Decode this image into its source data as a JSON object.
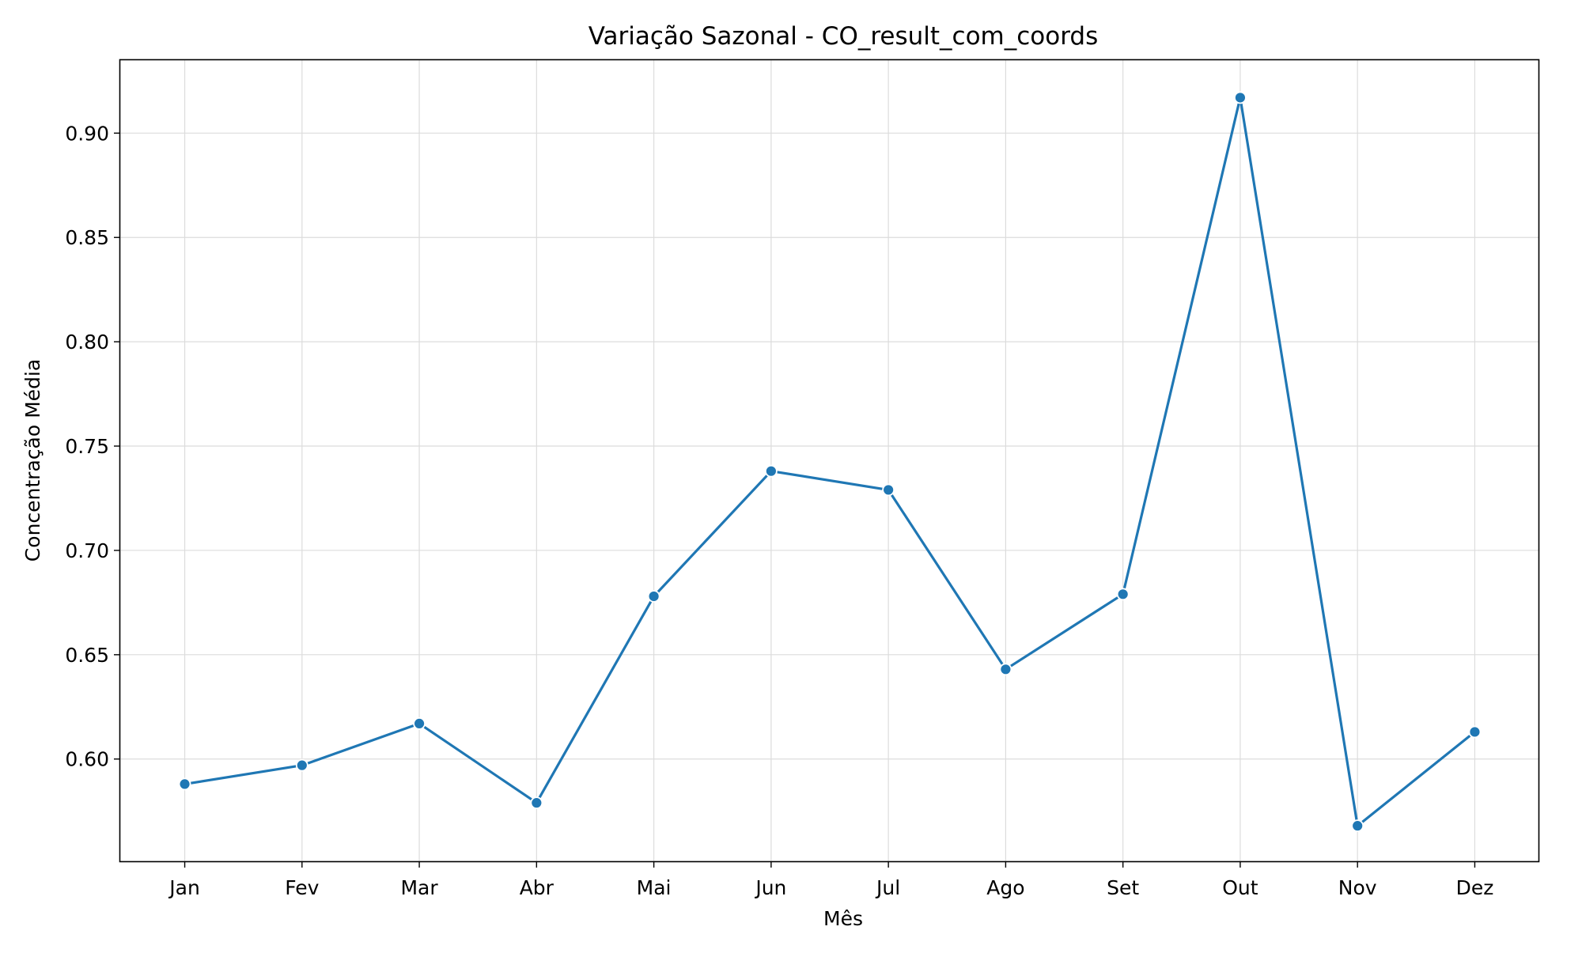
{
  "chart_data": {
    "type": "line",
    "title": "Variação Sazonal - CO_result_com_coords",
    "xlabel": "Mês",
    "ylabel": "Concentração Média",
    "categories": [
      "Jan",
      "Fev",
      "Mar",
      "Abr",
      "Mai",
      "Jun",
      "Jul",
      "Ago",
      "Set",
      "Out",
      "Nov",
      "Dez"
    ],
    "series": [
      {
        "values": [
          0.588,
          0.597,
          0.617,
          0.579,
          0.678,
          0.738,
          0.729,
          0.643,
          0.679,
          0.917,
          0.568,
          0.613
        ],
        "color": "#1f77b4",
        "marker": "circle"
      }
    ],
    "yticks": [
      "0.60",
      "0.65",
      "0.70",
      "0.75",
      "0.80",
      "0.85",
      "0.90"
    ],
    "ylim": [
      0.551,
      0.935
    ],
    "grid": true,
    "legend": "none"
  }
}
